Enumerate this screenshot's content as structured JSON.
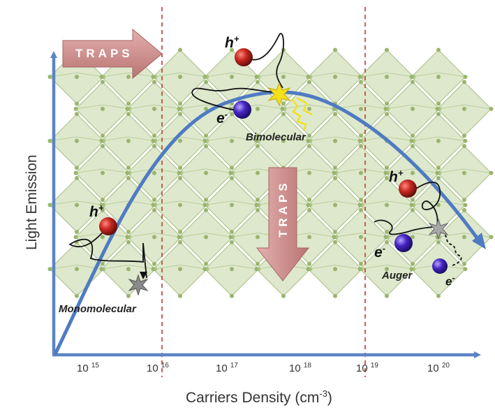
{
  "axes": {
    "y_title": "Light Emission",
    "x_title": "Carriers Density (cm",
    "x_title_exp": "-3",
    "x_title_close": ")",
    "x_ticks": [
      {
        "base": "10",
        "exp": "15"
      },
      {
        "base": "10",
        "exp": "16"
      },
      {
        "base": "10",
        "exp": "17"
      },
      {
        "base": "10",
        "exp": "18"
      },
      {
        "base": "10",
        "exp": "19"
      },
      {
        "base": "10",
        "exp": "20"
      }
    ]
  },
  "mechanisms": {
    "mono": "Monomolecular",
    "bi": "Bimolecular",
    "auger": "Auger"
  },
  "charges": {
    "hole": "h",
    "hole_sup": "+",
    "electron": "e",
    "electron_sup": "-"
  },
  "traps": {
    "horizontal": "TRAPS",
    "vertical": "TRAPS"
  },
  "colors": {
    "axis": "#5b84c6",
    "curve": "#4f7bc2",
    "hole": "#b3201a",
    "electron": "#3a22a8",
    "trap_arrow": "#c98f8f",
    "divider": "#c0392b",
    "lattice": "#b9cf98"
  }
}
